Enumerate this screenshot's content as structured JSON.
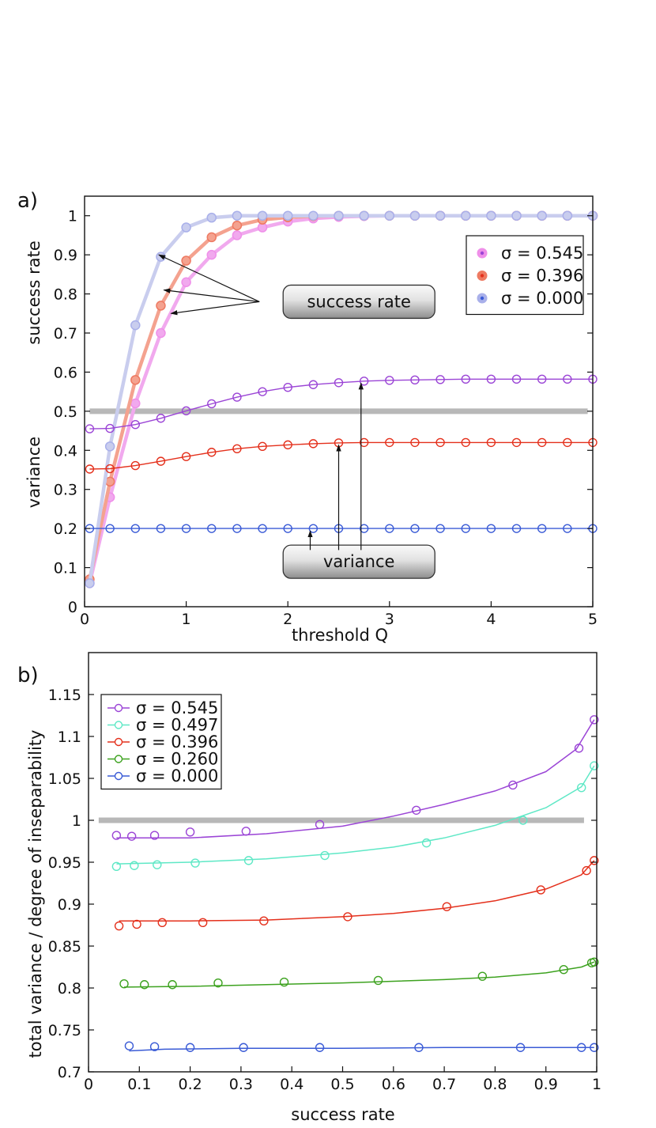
{
  "chart_data": [
    {
      "type": "line",
      "panel_label": "a)",
      "xlabel": "threshold Q",
      "ylabel_upper": "success rate",
      "ylabel_lower": "variance",
      "xlim": [
        0,
        5
      ],
      "ylim": [
        0,
        1.05
      ],
      "xticks": [
        0,
        1,
        2,
        3,
        4,
        5
      ],
      "yticks": [
        0,
        0.1,
        0.2,
        0.3,
        0.4,
        0.5,
        0.6,
        0.7,
        0.8,
        0.9,
        1
      ],
      "grid": false,
      "legend_position": "top-right",
      "reference_line": {
        "y": 0.5,
        "x_range": [
          0.05,
          4.95
        ],
        "color": "#b8b8b8"
      },
      "x": [
        0.05,
        0.25,
        0.5,
        0.75,
        1.0,
        1.25,
        1.5,
        1.75,
        2.0,
        2.25,
        2.5,
        2.75,
        3.0,
        3.25,
        3.5,
        3.75,
        4.0,
        4.25,
        4.5,
        4.75,
        5.0
      ],
      "series": [
        {
          "name": "σ = 0.545",
          "kind": "success",
          "color": "#f1a9ee",
          "marker_color": "#ef8fe9",
          "values": [
            0.06,
            0.28,
            0.52,
            0.7,
            0.83,
            0.9,
            0.95,
            0.97,
            0.985,
            0.993,
            0.997,
            0.999,
            1.0,
            1.0,
            1.0,
            1.0,
            1.0,
            1.0,
            1.0,
            1.0,
            1.0
          ]
        },
        {
          "name": "σ = 0.396",
          "kind": "success",
          "color": "#f4a28f",
          "marker_color": "#ee7a62",
          "values": [
            0.07,
            0.32,
            0.58,
            0.77,
            0.885,
            0.945,
            0.975,
            0.99,
            0.996,
            0.999,
            1.0,
            1.0,
            1.0,
            1.0,
            1.0,
            1.0,
            1.0,
            1.0,
            1.0,
            1.0,
            1.0
          ]
        },
        {
          "name": "σ = 0.000",
          "kind": "success",
          "color": "#c9cdee",
          "marker_color": "#a9b0ea",
          "values": [
            0.06,
            0.41,
            0.72,
            0.895,
            0.97,
            0.995,
            1.0,
            1.0,
            1.0,
            1.0,
            1.0,
            1.0,
            1.0,
            1.0,
            1.0,
            1.0,
            1.0,
            1.0,
            1.0,
            1.0,
            1.0
          ]
        },
        {
          "name": "σ = 0.545",
          "kind": "variance",
          "color": "#9b45d6",
          "values": [
            0.455,
            0.456,
            0.466,
            0.482,
            0.501,
            0.519,
            0.536,
            0.55,
            0.561,
            0.568,
            0.573,
            0.577,
            0.579,
            0.58,
            0.581,
            0.582,
            0.582,
            0.582,
            0.582,
            0.582,
            0.582
          ]
        },
        {
          "name": "σ = 0.396",
          "kind": "variance",
          "color": "#e4301c",
          "values": [
            0.352,
            0.353,
            0.361,
            0.372,
            0.384,
            0.395,
            0.404,
            0.41,
            0.414,
            0.417,
            0.419,
            0.42,
            0.42,
            0.42,
            0.42,
            0.42,
            0.42,
            0.42,
            0.42,
            0.42,
            0.42
          ]
        },
        {
          "name": "σ = 0.000",
          "kind": "variance",
          "color": "#3a5bd6",
          "values": [
            0.2,
            0.2,
            0.2,
            0.2,
            0.2,
            0.2,
            0.2,
            0.2,
            0.2,
            0.2,
            0.2,
            0.2,
            0.2,
            0.2,
            0.2,
            0.2,
            0.2,
            0.2,
            0.2,
            0.2,
            0.2
          ]
        }
      ],
      "legend": [
        {
          "label": "σ = 0.545",
          "color": "#ef8fe9",
          "dot": "#9b45d6"
        },
        {
          "label": "σ = 0.396",
          "color": "#ee7a62",
          "dot": "#e4301c"
        },
        {
          "label": "σ = 0.000",
          "color": "#a9b0ea",
          "dot": "#3a5bd6"
        }
      ],
      "annotations": [
        {
          "text": "success rate",
          "box_center": [
            2.7,
            0.78
          ],
          "arrow_targets": [
            [
              0.73,
              0.9
            ],
            [
              0.78,
              0.81
            ],
            [
              0.85,
              0.75
            ]
          ],
          "arrow_origin": [
            1.72,
            0.78
          ]
        },
        {
          "text": "variance",
          "box_center": [
            2.7,
            0.115
          ],
          "arrow_targets": [
            [
              2.22,
              0.2
            ],
            [
              2.5,
              0.42
            ],
            [
              2.72,
              0.578
            ]
          ],
          "arrow_origins": [
            [
              2.22,
              0.145
            ],
            [
              2.5,
              0.145
            ],
            [
              2.72,
              0.145
            ]
          ]
        }
      ]
    },
    {
      "type": "line",
      "panel_label": "b)",
      "xlabel": "success rate",
      "ylabel": "total variance / degree of inseparability",
      "xlim": [
        0,
        1
      ],
      "ylim": [
        0.7,
        1.2
      ],
      "xticks": [
        0,
        0.1,
        0.2,
        0.3,
        0.4,
        0.5,
        0.6,
        0.7,
        0.8,
        0.9,
        1
      ],
      "yticks": [
        0.7,
        0.75,
        0.8,
        0.85,
        0.9,
        0.95,
        1,
        1.05,
        1.1,
        1.15
      ],
      "grid": false,
      "legend_position": "top-left",
      "reference_line": {
        "y": 1.0,
        "x_range": [
          0.02,
          0.975
        ],
        "color": "#b8b8b8"
      },
      "series": [
        {
          "name": "σ = 0.545",
          "color": "#9b45d6",
          "points": [
            [
              0.055,
              0.982
            ],
            [
              0.085,
              0.981
            ],
            [
              0.13,
              0.982
            ],
            [
              0.2,
              0.986
            ],
            [
              0.31,
              0.987
            ],
            [
              0.455,
              0.995
            ],
            [
              0.645,
              1.012
            ],
            [
              0.835,
              1.042
            ],
            [
              0.965,
              1.086
            ],
            [
              0.995,
              1.12
            ]
          ],
          "curve": [
            [
              0.055,
              0.979
            ],
            [
              0.2,
              0.979
            ],
            [
              0.35,
              0.984
            ],
            [
              0.5,
              0.993
            ],
            [
              0.6,
              1.005
            ],
            [
              0.7,
              1.019
            ],
            [
              0.8,
              1.035
            ],
            [
              0.9,
              1.058
            ],
            [
              0.96,
              1.085
            ],
            [
              0.995,
              1.12
            ]
          ]
        },
        {
          "name": "σ = 0.497",
          "color": "#5fe8c6",
          "points": [
            [
              0.055,
              0.945
            ],
            [
              0.09,
              0.946
            ],
            [
              0.135,
              0.947
            ],
            [
              0.21,
              0.949
            ],
            [
              0.315,
              0.952
            ],
            [
              0.465,
              0.958
            ],
            [
              0.665,
              0.973
            ],
            [
              0.855,
              1.0
            ],
            [
              0.97,
              1.039
            ],
            [
              0.995,
              1.065
            ]
          ],
          "curve": [
            [
              0.055,
              0.948
            ],
            [
              0.2,
              0.95
            ],
            [
              0.35,
              0.954
            ],
            [
              0.5,
              0.961
            ],
            [
              0.6,
              0.968
            ],
            [
              0.7,
              0.979
            ],
            [
              0.8,
              0.994
            ],
            [
              0.9,
              1.015
            ],
            [
              0.97,
              1.04
            ],
            [
              0.995,
              1.065
            ]
          ]
        },
        {
          "name": "σ = 0.396",
          "color": "#e4301c",
          "points": [
            [
              0.06,
              0.874
            ],
            [
              0.095,
              0.876
            ],
            [
              0.145,
              0.878
            ],
            [
              0.225,
              0.878
            ],
            [
              0.345,
              0.88
            ],
            [
              0.51,
              0.885
            ],
            [
              0.705,
              0.897
            ],
            [
              0.89,
              0.917
            ],
            [
              0.98,
              0.94
            ],
            [
              0.995,
              0.952
            ]
          ],
          "curve": [
            [
              0.06,
              0.88
            ],
            [
              0.2,
              0.88
            ],
            [
              0.35,
              0.881
            ],
            [
              0.5,
              0.885
            ],
            [
              0.6,
              0.889
            ],
            [
              0.7,
              0.895
            ],
            [
              0.8,
              0.904
            ],
            [
              0.9,
              0.918
            ],
            [
              0.97,
              0.935
            ],
            [
              0.995,
              0.952
            ]
          ]
        },
        {
          "name": "σ = 0.260",
          "color": "#3da21f",
          "points": [
            [
              0.07,
              0.805
            ],
            [
              0.11,
              0.804
            ],
            [
              0.165,
              0.804
            ],
            [
              0.255,
              0.806
            ],
            [
              0.385,
              0.807
            ],
            [
              0.57,
              0.809
            ],
            [
              0.775,
              0.814
            ],
            [
              0.935,
              0.822
            ],
            [
              0.99,
              0.83
            ],
            [
              0.995,
              0.831
            ]
          ],
          "curve": [
            [
              0.07,
              0.801
            ],
            [
              0.2,
              0.802
            ],
            [
              0.35,
              0.804
            ],
            [
              0.5,
              0.806
            ],
            [
              0.6,
              0.808
            ],
            [
              0.7,
              0.81
            ],
            [
              0.8,
              0.813
            ],
            [
              0.9,
              0.818
            ],
            [
              0.97,
              0.825
            ],
            [
              0.995,
              0.831
            ]
          ]
        },
        {
          "name": "σ = 0.000",
          "color": "#3a5bd6",
          "points": [
            [
              0.08,
              0.731
            ],
            [
              0.13,
              0.73
            ],
            [
              0.2,
              0.729
            ],
            [
              0.305,
              0.729
            ],
            [
              0.455,
              0.729
            ],
            [
              0.65,
              0.729
            ],
            [
              0.85,
              0.729
            ],
            [
              0.97,
              0.729
            ],
            [
              0.995,
              0.729
            ]
          ],
          "curve": [
            [
              0.08,
              0.725
            ],
            [
              0.15,
              0.727
            ],
            [
              0.3,
              0.728
            ],
            [
              0.5,
              0.728
            ],
            [
              0.7,
              0.729
            ],
            [
              0.9,
              0.729
            ],
            [
              0.995,
              0.729
            ]
          ]
        }
      ],
      "legend": [
        {
          "label": "σ = 0.545",
          "color": "#9b45d6"
        },
        {
          "label": "σ = 0.497",
          "color": "#5fe8c6"
        },
        {
          "label": "σ = 0.396",
          "color": "#e4301c"
        },
        {
          "label": "σ = 0.260",
          "color": "#3da21f"
        },
        {
          "label": "σ = 0.000",
          "color": "#3a5bd6"
        }
      ]
    }
  ]
}
